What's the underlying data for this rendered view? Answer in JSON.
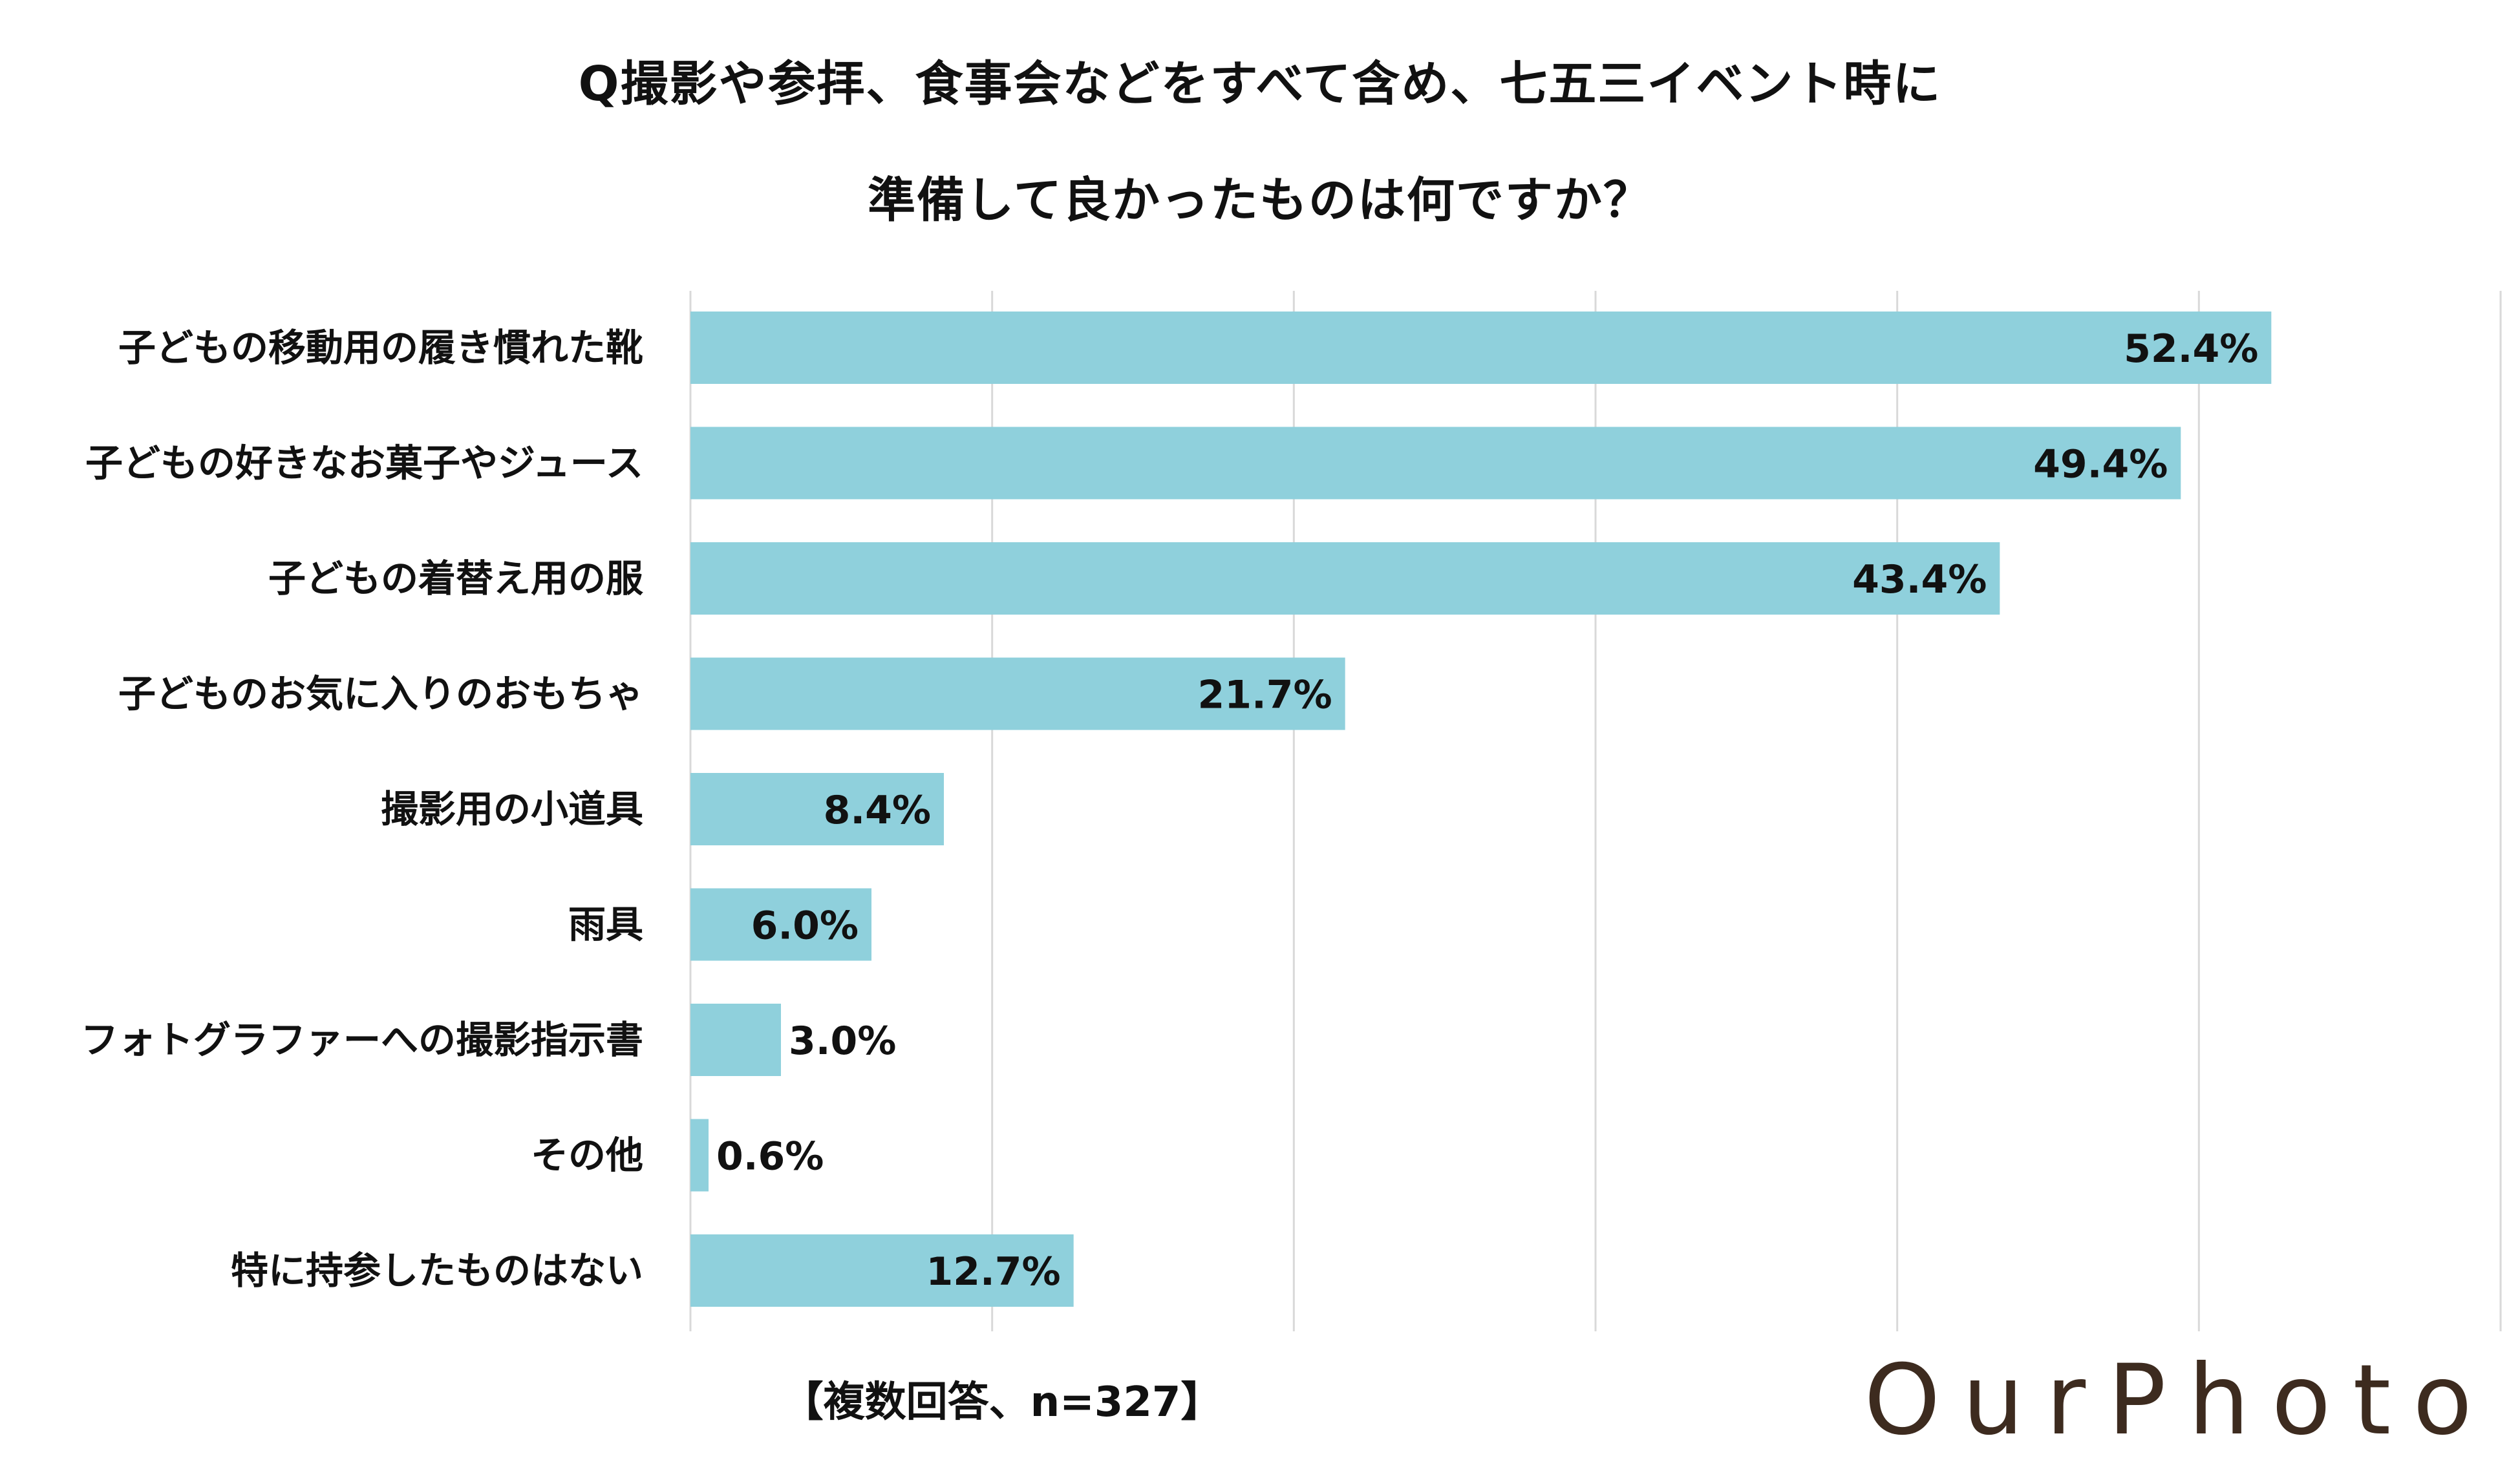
{
  "title": {
    "line1": "Q撮影や参拝、食事会などをすべて含め、七五三イベント時に",
    "line2": "準備して良かったものは何ですか？"
  },
  "note": "【複数回答、n=327】",
  "logo": "OurPhoto",
  "colors": {
    "bar": "#8fd0dc",
    "grid": "#d9d9d9",
    "text": "#111111",
    "logo": "#3d2b1f"
  },
  "chart_data": {
    "type": "bar",
    "orientation": "horizontal",
    "categories": [
      "子どもの移動用の履き慣れた靴",
      "子どもの好きなお菓子やジュース",
      "子どもの着替え用の服",
      "子どものお気に入りのおもちゃ",
      "撮影用の小道具",
      "雨具",
      "フォトグラファーへの撮影指示書",
      "その他",
      "特に持参したものはない"
    ],
    "values": [
      52.4,
      49.4,
      43.4,
      21.7,
      8.4,
      6.0,
      3.0,
      0.6,
      12.7
    ],
    "labels": [
      "52.4%",
      "49.4%",
      "43.4%",
      "21.7%",
      "8.4%",
      "6.0%",
      "3.0%",
      "0.6%",
      "12.7%"
    ],
    "xlim": [
      0,
      60
    ],
    "grid_step": 10,
    "title": "Q撮影や参拝、食事会などをすべて含め、七五三イベント時に準備して良かったものは何ですか？"
  }
}
